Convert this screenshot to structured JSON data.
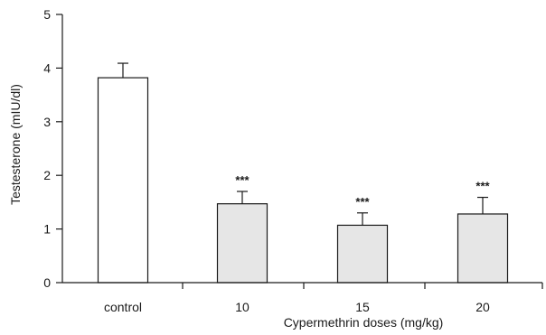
{
  "chart_data": {
    "type": "bar",
    "title": "",
    "xlabel": "Cypermethrin doses (mg/kg)",
    "ylabel": "Testesterone (mIU/dl)",
    "ylim": [
      0,
      5
    ],
    "yticks": [
      "0",
      "1",
      "2",
      "3",
      "4",
      "5"
    ],
    "categories": [
      "control",
      "10",
      "15",
      "20"
    ],
    "values": [
      3.82,
      1.47,
      1.07,
      1.28
    ],
    "error": [
      0.27,
      0.23,
      0.23,
      0.31
    ],
    "significance": [
      "",
      "***",
      "***",
      "***"
    ],
    "bar_colors": [
      "#ffffff",
      "#e6e6e6",
      "#e6e6e6",
      "#e6e6e6"
    ],
    "grid": false,
    "legend": "none"
  }
}
